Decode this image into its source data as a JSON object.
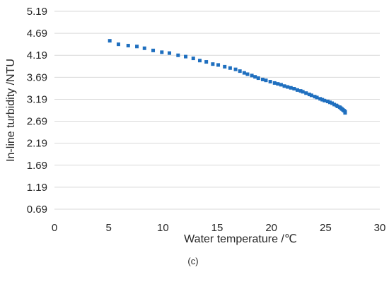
{
  "chart_data": {
    "type": "scatter",
    "title": "",
    "xlabel": "Water temperature /℃",
    "ylabel": "In-line turbidity /NTU",
    "panel_label": "(c)",
    "xlim": [
      0,
      30
    ],
    "ylim": [
      0.69,
      5.19
    ],
    "x_ticks": [
      0,
      5,
      10,
      15,
      20,
      25,
      30
    ],
    "y_ticks": [
      0.69,
      1.19,
      1.69,
      2.19,
      2.69,
      3.19,
      3.69,
      4.19,
      4.69,
      5.19
    ],
    "y_tick_labels": [
      "0.69",
      "1.19",
      "1.69",
      "2.19",
      "2.69",
      "3.19",
      "3.69",
      "4.19",
      "4.69",
      "5.19"
    ],
    "x_tick_labels": [
      "0",
      "5",
      "10",
      "15",
      "20",
      "25",
      "30"
    ],
    "grid": "horizontal",
    "legend": "none",
    "marker_color": "#1f6fbf",
    "series": [
      {
        "points": [
          [
            5.1,
            4.52
          ],
          [
            5.9,
            4.44
          ],
          [
            6.8,
            4.41
          ],
          [
            7.6,
            4.39
          ],
          [
            8.3,
            4.35
          ],
          [
            9.1,
            4.3
          ],
          [
            9.9,
            4.26
          ],
          [
            10.6,
            4.24
          ],
          [
            11.4,
            4.19
          ],
          [
            12.1,
            4.16
          ],
          [
            12.8,
            4.12
          ],
          [
            13.4,
            4.07
          ],
          [
            14.0,
            4.04
          ],
          [
            14.6,
            3.99
          ],
          [
            15.1,
            3.97
          ],
          [
            15.7,
            3.93
          ],
          [
            16.2,
            3.9
          ],
          [
            16.7,
            3.87
          ],
          [
            17.1,
            3.83
          ],
          [
            17.5,
            3.79
          ],
          [
            17.8,
            3.76
          ],
          [
            18.2,
            3.73
          ],
          [
            18.5,
            3.7
          ],
          [
            18.8,
            3.67
          ],
          [
            19.2,
            3.64
          ],
          [
            19.5,
            3.62
          ],
          [
            19.9,
            3.59
          ],
          [
            20.3,
            3.56
          ],
          [
            20.6,
            3.54
          ],
          [
            20.9,
            3.52
          ],
          [
            21.2,
            3.49
          ],
          [
            21.5,
            3.47
          ],
          [
            21.8,
            3.45
          ],
          [
            22.1,
            3.43
          ],
          [
            22.4,
            3.4
          ],
          [
            22.7,
            3.38
          ],
          [
            22.9,
            3.36
          ],
          [
            23.2,
            3.33
          ],
          [
            23.5,
            3.3
          ],
          [
            23.7,
            3.28
          ],
          [
            24.0,
            3.25
          ],
          [
            24.2,
            3.23
          ],
          [
            24.5,
            3.2
          ],
          [
            24.7,
            3.18
          ],
          [
            24.9,
            3.16
          ],
          [
            25.2,
            3.14
          ],
          [
            25.4,
            3.12
          ],
          [
            25.6,
            3.1
          ],
          [
            25.8,
            3.07
          ],
          [
            26.0,
            3.05
          ],
          [
            26.1,
            3.03
          ],
          [
            26.3,
            3.01
          ],
          [
            26.4,
            2.99
          ],
          [
            26.5,
            2.97
          ],
          [
            26.6,
            2.95
          ],
          [
            26.7,
            2.93
          ],
          [
            26.8,
            2.91
          ],
          [
            26.8,
            2.88
          ]
        ]
      }
    ]
  }
}
